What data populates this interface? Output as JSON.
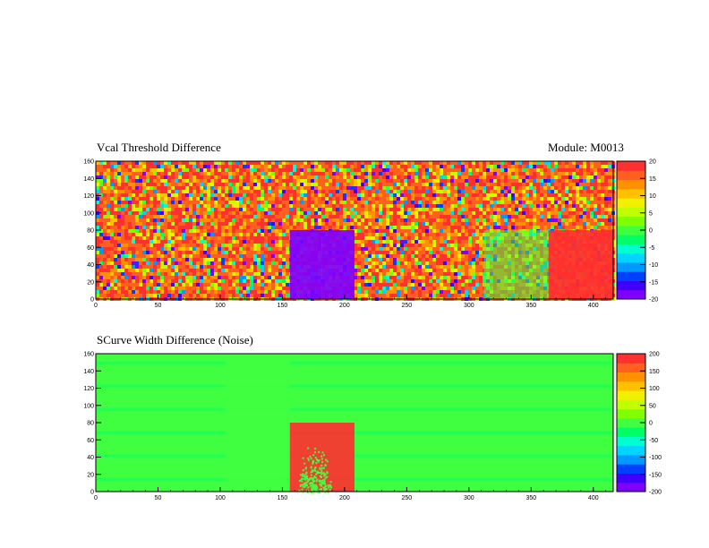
{
  "module_label": "Module: M0013",
  "chart_data": [
    {
      "type": "heatmap",
      "title": "Vcal Threshold Difference",
      "xlim": [
        0,
        416
      ],
      "ylim": [
        0,
        160
      ],
      "x_ticks": [
        "0",
        "50",
        "100",
        "150",
        "200",
        "250",
        "300",
        "350",
        "400"
      ],
      "x_tick_values": [
        0,
        50,
        100,
        150,
        200,
        250,
        300,
        350,
        400
      ],
      "y_ticks": [
        "0",
        "20",
        "40",
        "60",
        "80",
        "100",
        "120",
        "140",
        "160"
      ],
      "y_tick_values": [
        0,
        20,
        40,
        60,
        80,
        100,
        120,
        140,
        160
      ],
      "zlim": [
        -20,
        20
      ],
      "colorbar_ticks": [
        "20",
        "15",
        "10",
        "5",
        "0",
        "-5",
        "-10",
        "-15",
        "-20"
      ],
      "colorbar_tick_values": [
        20,
        15,
        10,
        5,
        0,
        -5,
        -10,
        -15,
        -20
      ],
      "background": "noisy mixed values, mostly positive (red/orange)",
      "regions": [
        {
          "x": [
            156,
            182
          ],
          "y": [
            0,
            80
          ],
          "value": -20
        },
        {
          "x": [
            182,
            208
          ],
          "y": [
            0,
            80
          ],
          "value": -18
        },
        {
          "x": [
            312,
            364
          ],
          "y": [
            0,
            80
          ],
          "value": 0
        },
        {
          "x": [
            364,
            416
          ],
          "y": [
            0,
            80
          ],
          "value": 18
        }
      ]
    },
    {
      "type": "heatmap",
      "title": "SCurve Width Difference (Noise)",
      "xlim": [
        0,
        416
      ],
      "ylim": [
        0,
        160
      ],
      "x_ticks": [
        "0",
        "50",
        "100",
        "150",
        "200",
        "250",
        "300",
        "350",
        "400"
      ],
      "x_tick_values": [
        0,
        50,
        100,
        150,
        200,
        250,
        300,
        350,
        400
      ],
      "y_ticks": [
        "0",
        "20",
        "40",
        "60",
        "80",
        "100",
        "120",
        "140",
        "160"
      ],
      "y_tick_values": [
        0,
        20,
        40,
        60,
        80,
        100,
        120,
        140,
        160
      ],
      "zlim": [
        -200,
        200
      ],
      "colorbar_ticks": [
        "200",
        "150",
        "100",
        "50",
        "0",
        "-50",
        "-100",
        "-150",
        "-200"
      ],
      "colorbar_tick_values": [
        200,
        150,
        100,
        50,
        0,
        -50,
        -100,
        -150,
        -200
      ],
      "background_value": -10,
      "regions": [
        {
          "x": [
            104,
            156
          ],
          "y": [
            0,
            160
          ],
          "value": 10
        },
        {
          "x": [
            156,
            208
          ],
          "y": [
            0,
            80
          ],
          "value": 200
        }
      ]
    }
  ],
  "colors": {
    "palette": [
      "#7F00FF",
      "#3F00FF",
      "#0040FF",
      "#0099FF",
      "#00D5FF",
      "#00FFD0",
      "#00FF66",
      "#40FF40",
      "#80FF00",
      "#C0FF00",
      "#F0F000",
      "#FFC000",
      "#FF9000",
      "#FF6020",
      "#FF3030"
    ],
    "frame": "#000000"
  }
}
